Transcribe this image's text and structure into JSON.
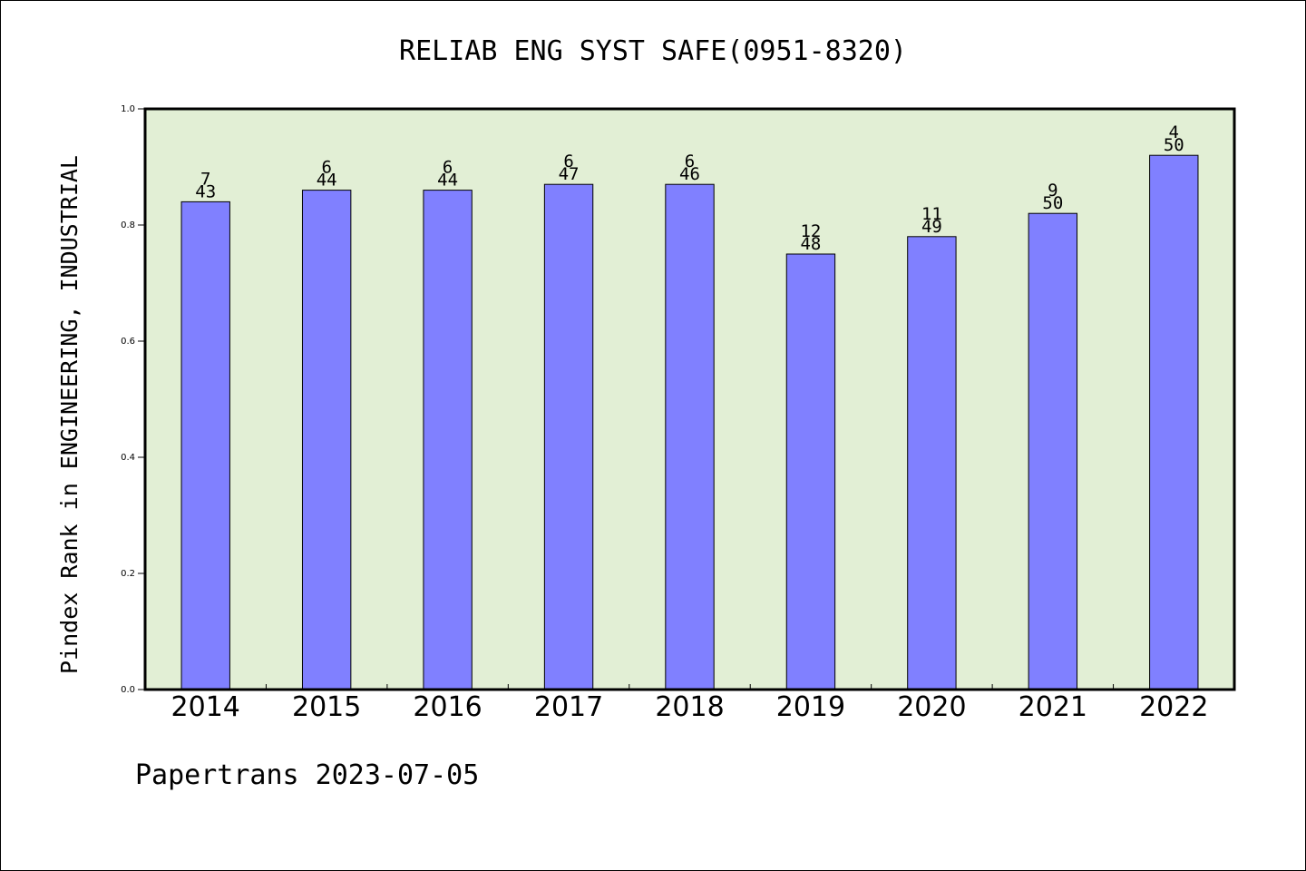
{
  "chart_data": {
    "type": "bar",
    "title": "RELIAB ENG SYST SAFE(0951-8320)",
    "ylabel": "Pindex Rank in ENGINEERING, INDUSTRIAL",
    "xlabel": "",
    "footer": "Papertrans 2023-07-05",
    "categories": [
      "2014",
      "2015",
      "2016",
      "2017",
      "2018",
      "2019",
      "2020",
      "2021",
      "2022"
    ],
    "values": [
      0.84,
      0.86,
      0.86,
      0.87,
      0.87,
      0.75,
      0.78,
      0.82,
      0.92
    ],
    "rank_labels": [
      "7",
      "6",
      "6",
      "6",
      "6",
      "12",
      "11",
      "9",
      "4"
    ],
    "total_labels": [
      "43",
      "44",
      "44",
      "47",
      "46",
      "48",
      "49",
      "50",
      "50"
    ],
    "ylim": [
      0,
      1.0
    ],
    "yticks": [
      "0.0",
      "0.2",
      "0.4",
      "0.6",
      "0.8",
      "1.0"
    ],
    "grid": false,
    "colors": {
      "bar": "#8080ff",
      "plot_background": "#e2efd5",
      "axis": "#000000"
    }
  }
}
